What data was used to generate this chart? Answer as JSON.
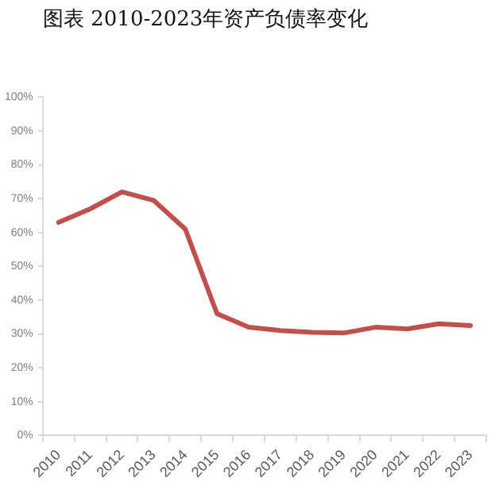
{
  "chart_data": {
    "type": "line",
    "title": "图表 2010-2023年资产负债率变化",
    "categories": [
      "2010",
      "2011",
      "2012",
      "2013",
      "2014",
      "2015",
      "2016",
      "2017",
      "2018",
      "2019",
      "2020",
      "2021",
      "2022",
      "2023"
    ],
    "series": [
      {
        "color": "#c0504d",
        "values": [
          63,
          67,
          72,
          69.5,
          61,
          36,
          32,
          31,
          30.5,
          30.3,
          32,
          31.5,
          33,
          32.5
        ]
      }
    ],
    "ylim": [
      0,
      100
    ],
    "yticks": [
      {
        "value": 0,
        "label": "0%"
      },
      {
        "value": 10,
        "label": "10%"
      },
      {
        "value": 20,
        "label": "20%"
      },
      {
        "value": 30,
        "label": "30%"
      },
      {
        "value": 40,
        "label": "40%"
      },
      {
        "value": 50,
        "label": "50%"
      },
      {
        "value": 60,
        "label": "60%"
      },
      {
        "value": 70,
        "label": "70%"
      },
      {
        "value": 80,
        "label": "80%"
      },
      {
        "value": 90,
        "label": "90%"
      },
      {
        "value": 100,
        "label": "100%"
      }
    ],
    "grid": false,
    "legend": false,
    "marker": "none",
    "line_style": "solid"
  }
}
